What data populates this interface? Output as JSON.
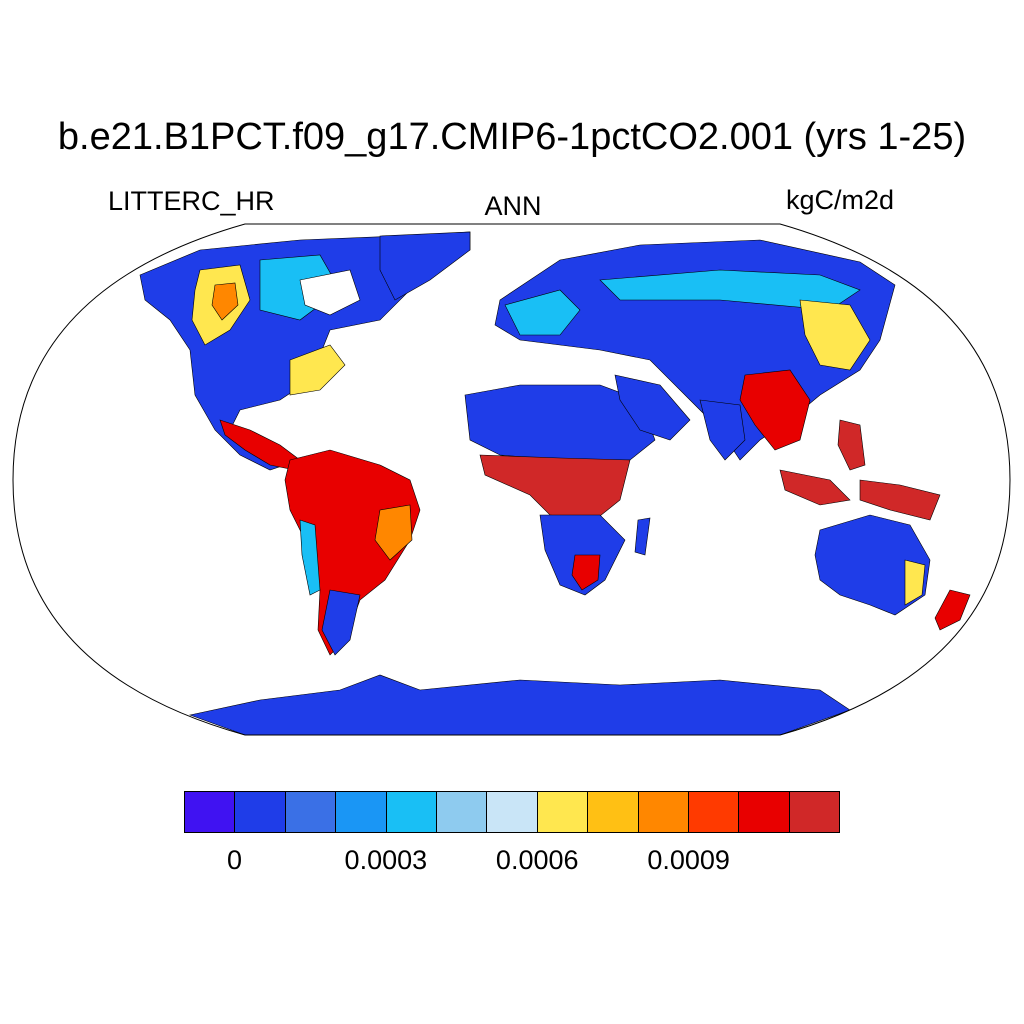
{
  "title": "b.e21.B1PCT.f09_g17.CMIP6-1pctCO2.001 (yrs 1-25)",
  "variable": "LITTERC_HR",
  "season": "ANN",
  "units": "kgC/m2d",
  "colorbar": {
    "colors": [
      "#4012f2",
      "#1f3de8",
      "#3a70e6",
      "#1a96f5",
      "#19bff5",
      "#8ecbef",
      "#c9e5f7",
      "#ffe74f",
      "#ffc014",
      "#ff8700",
      "#ff3a00",
      "#e80000",
      "#d02828"
    ],
    "tick_labels": [
      "0",
      "0.0003",
      "0.0006",
      "0.0009"
    ]
  },
  "map_colors": {
    "ocean": "#ffffff",
    "outline": "#000000",
    "low": "#1f3de8",
    "mid_low": "#3a70e6",
    "mid": "#19bff5",
    "light": "#c9e5f7",
    "yellow": "#ffe74f",
    "orange": "#ff8700",
    "red": "#e80000",
    "dark_red": "#d02828"
  }
}
